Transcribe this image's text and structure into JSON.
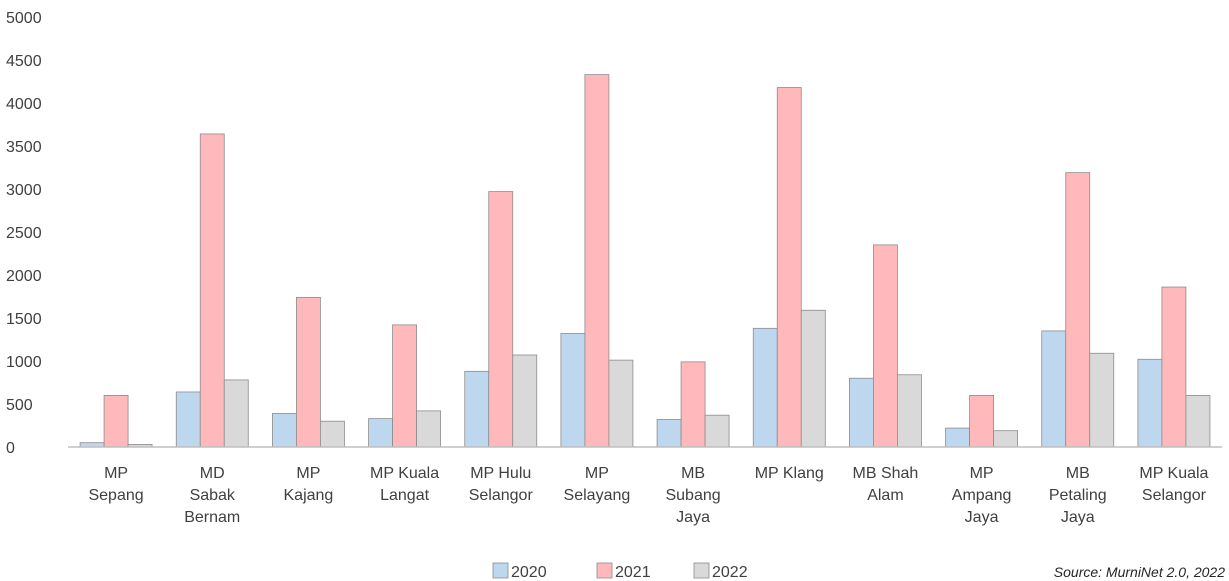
{
  "chart_data": {
    "type": "bar",
    "categories": [
      [
        "MP",
        "Sepang"
      ],
      [
        "MD",
        "Sabak",
        "Bernam"
      ],
      [
        "MP",
        "Kajang"
      ],
      [
        "MP Kuala",
        "Langat"
      ],
      [
        "MP Hulu",
        "Selangor"
      ],
      [
        "MP",
        "Selayang"
      ],
      [
        "MB",
        "Subang",
        "Jaya"
      ],
      [
        "MP Klang"
      ],
      [
        "MB Shah",
        "Alam"
      ],
      [
        "MP",
        "Ampang",
        "Jaya"
      ],
      [
        "MB",
        "Petaling",
        "Jaya"
      ],
      [
        "MP Kuala",
        "Selangor"
      ]
    ],
    "series": [
      {
        "name": "2020",
        "color": "#bdd7ee",
        "values": [
          50,
          640,
          390,
          330,
          880,
          1320,
          320,
          1380,
          800,
          220,
          1350,
          1020
        ]
      },
      {
        "name": "2021",
        "color": "#ffb9bb",
        "values": [
          600,
          3640,
          1740,
          1420,
          2970,
          4330,
          990,
          4180,
          2350,
          600,
          3190,
          1860
        ]
      },
      {
        "name": "2022",
        "color": "#d9d9d9",
        "values": [
          30,
          780,
          300,
          420,
          1070,
          1010,
          370,
          1590,
          840,
          190,
          1090,
          600
        ]
      }
    ],
    "yticks": [
      "5000",
      "4500",
      "4000",
      "3500",
      "3000",
      "2500",
      "2000",
      "1500",
      "1000",
      "500",
      "0"
    ],
    "ylim": [
      0,
      5000
    ],
    "legend_position": "bottom-center",
    "grid": false,
    "source_note": "Source: MurniNet 2.0, 2022"
  }
}
